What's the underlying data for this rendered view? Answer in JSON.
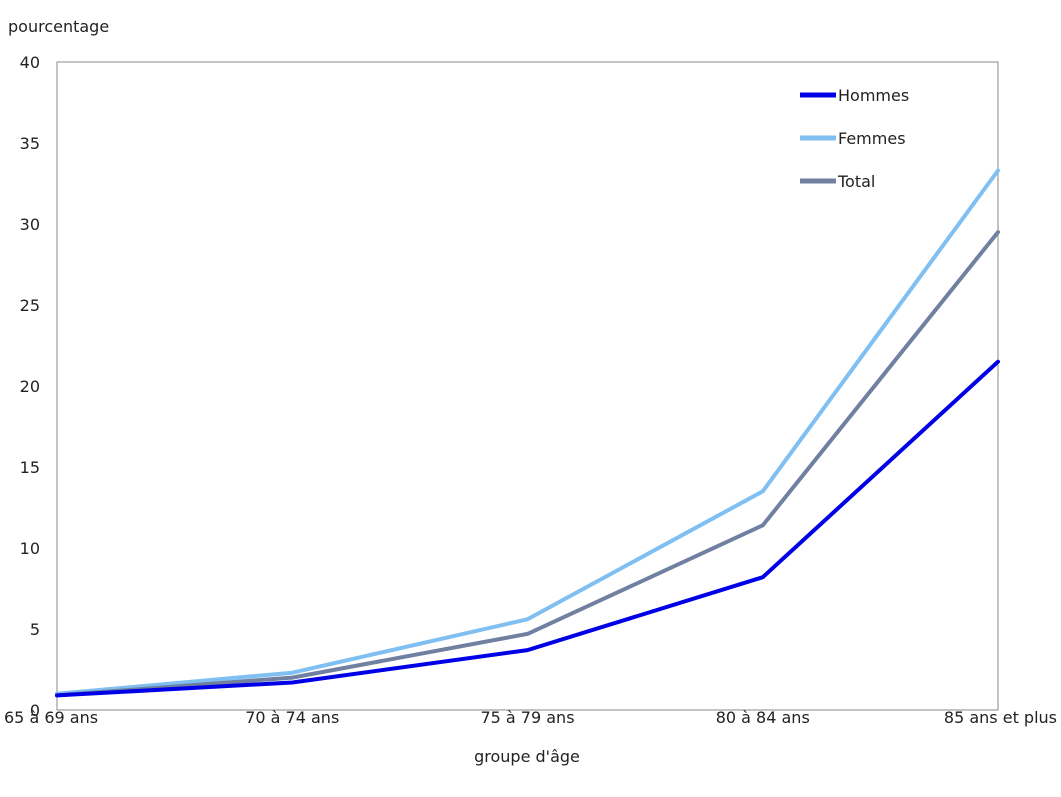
{
  "chart_data": {
    "type": "line",
    "title": "",
    "ylabel": "pourcentage",
    "xlabel": "groupe d'âge",
    "categories": [
      "65 à 69 ans",
      "70 à 74 ans",
      "75 à 79 ans",
      "80 à 84 ans",
      "85 ans et plus"
    ],
    "y_ticks": [
      "0",
      "5",
      "10",
      "15",
      "20",
      "25",
      "30",
      "35",
      "40"
    ],
    "ylim": [
      0,
      40
    ],
    "grid": false,
    "legend_position": "top-right",
    "series": [
      {
        "name": "Hommes",
        "color": "#0000e6",
        "values": [
          0.9,
          1.7,
          3.7,
          8.2,
          21.5
        ]
      },
      {
        "name": "Femmes",
        "color": "#80bff2",
        "values": [
          1.0,
          2.3,
          5.6,
          13.5,
          33.3
        ]
      },
      {
        "name": "Total",
        "color": "#7080a0",
        "values": [
          0.9,
          2.0,
          4.7,
          11.4,
          29.5
        ]
      }
    ]
  }
}
